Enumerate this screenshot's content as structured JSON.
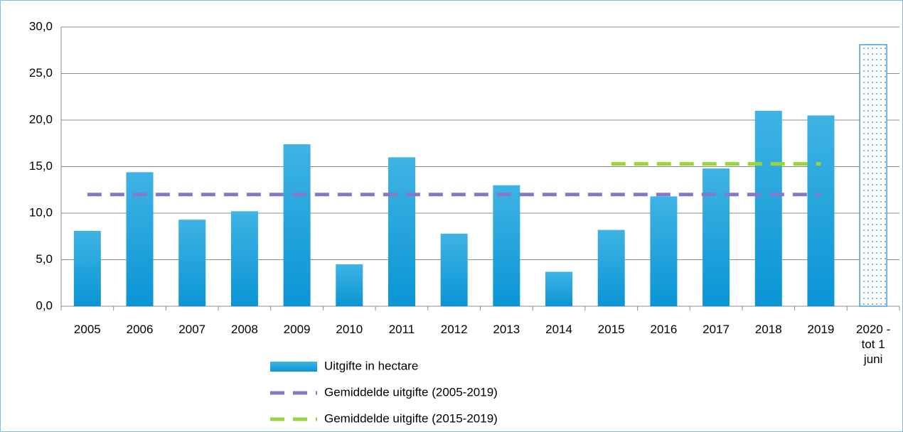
{
  "chart_data": {
    "type": "bar",
    "categories": [
      "2005",
      "2006",
      "2007",
      "2008",
      "2009",
      "2010",
      "2011",
      "2012",
      "2013",
      "2014",
      "2015",
      "2016",
      "2017",
      "2018",
      "2019",
      "2020 - tot 1 juni"
    ],
    "series": [
      {
        "name": "Uitgifte in hectare",
        "type": "bar",
        "color": "#1fa3dc",
        "values": [
          8.1,
          14.4,
          9.3,
          10.2,
          17.4,
          4.5,
          16.0,
          7.8,
          13.0,
          3.7,
          8.2,
          11.8,
          14.8,
          21.0,
          20.5,
          28.1
        ],
        "dotted": [
          false,
          false,
          false,
          false,
          false,
          false,
          false,
          false,
          false,
          false,
          false,
          false,
          false,
          false,
          false,
          true
        ]
      },
      {
        "name": "Gemiddelde uitgifte (2005-2019)",
        "type": "dashed-line",
        "color": "#8878c8",
        "values": [
          12.0,
          12.0,
          12.0,
          12.0,
          12.0,
          12.0,
          12.0,
          12.0,
          12.0,
          12.0,
          12.0,
          12.0,
          12.0,
          12.0,
          12.0,
          null
        ]
      },
      {
        "name": "Gemiddelde uitgifte (2015-2019)",
        "type": "dashed-line",
        "color": "#99d43a",
        "values": [
          null,
          null,
          null,
          null,
          null,
          null,
          null,
          null,
          null,
          null,
          15.3,
          15.3,
          15.3,
          15.3,
          15.3,
          null
        ]
      }
    ],
    "ylim": [
      0,
      30
    ],
    "yticks": [
      {
        "value": 0,
        "label": "0,0"
      },
      {
        "value": 5,
        "label": "5,0"
      },
      {
        "value": 10,
        "label": "10,0"
      },
      {
        "value": 15,
        "label": "15,0"
      },
      {
        "value": 20,
        "label": "20,0"
      },
      {
        "value": 25,
        "label": "25,0"
      },
      {
        "value": 30,
        "label": "30,0"
      }
    ],
    "grid": true
  }
}
